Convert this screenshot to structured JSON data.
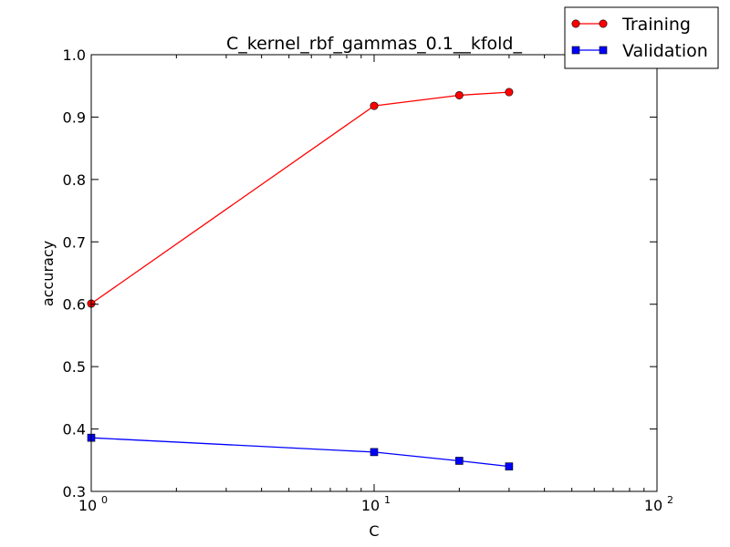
{
  "chart_data": {
    "type": "line",
    "title": "C_kernel_rbf_gammas_0.1__kfold_",
    "xlabel": "C",
    "ylabel": "accuracy",
    "xscale": "log",
    "xlim": [
      1,
      100
    ],
    "ylim": [
      0.3,
      1.0
    ],
    "grid": false,
    "legend_position": "top-right (outside plot)",
    "x_tick_labels": [
      {
        "value": 1,
        "base": "10",
        "exp": "0"
      },
      {
        "value": 10,
        "base": "10",
        "exp": "1"
      },
      {
        "value": 100,
        "base": "10",
        "exp": "2"
      }
    ],
    "y_tick_labels": [
      "0.3",
      "0.4",
      "0.5",
      "0.6",
      "0.7",
      "0.8",
      "0.9",
      "1.0"
    ],
    "series": [
      {
        "name": "Training",
        "color": "#ff0000",
        "marker": "circle",
        "x": [
          1,
          10,
          20,
          30
        ],
        "y": [
          0.601,
          0.918,
          0.935,
          0.94
        ]
      },
      {
        "name": "Validation",
        "color": "#0000ff",
        "marker": "square",
        "x": [
          1,
          10,
          20,
          30
        ],
        "y": [
          0.386,
          0.363,
          0.349,
          0.34
        ]
      }
    ]
  }
}
